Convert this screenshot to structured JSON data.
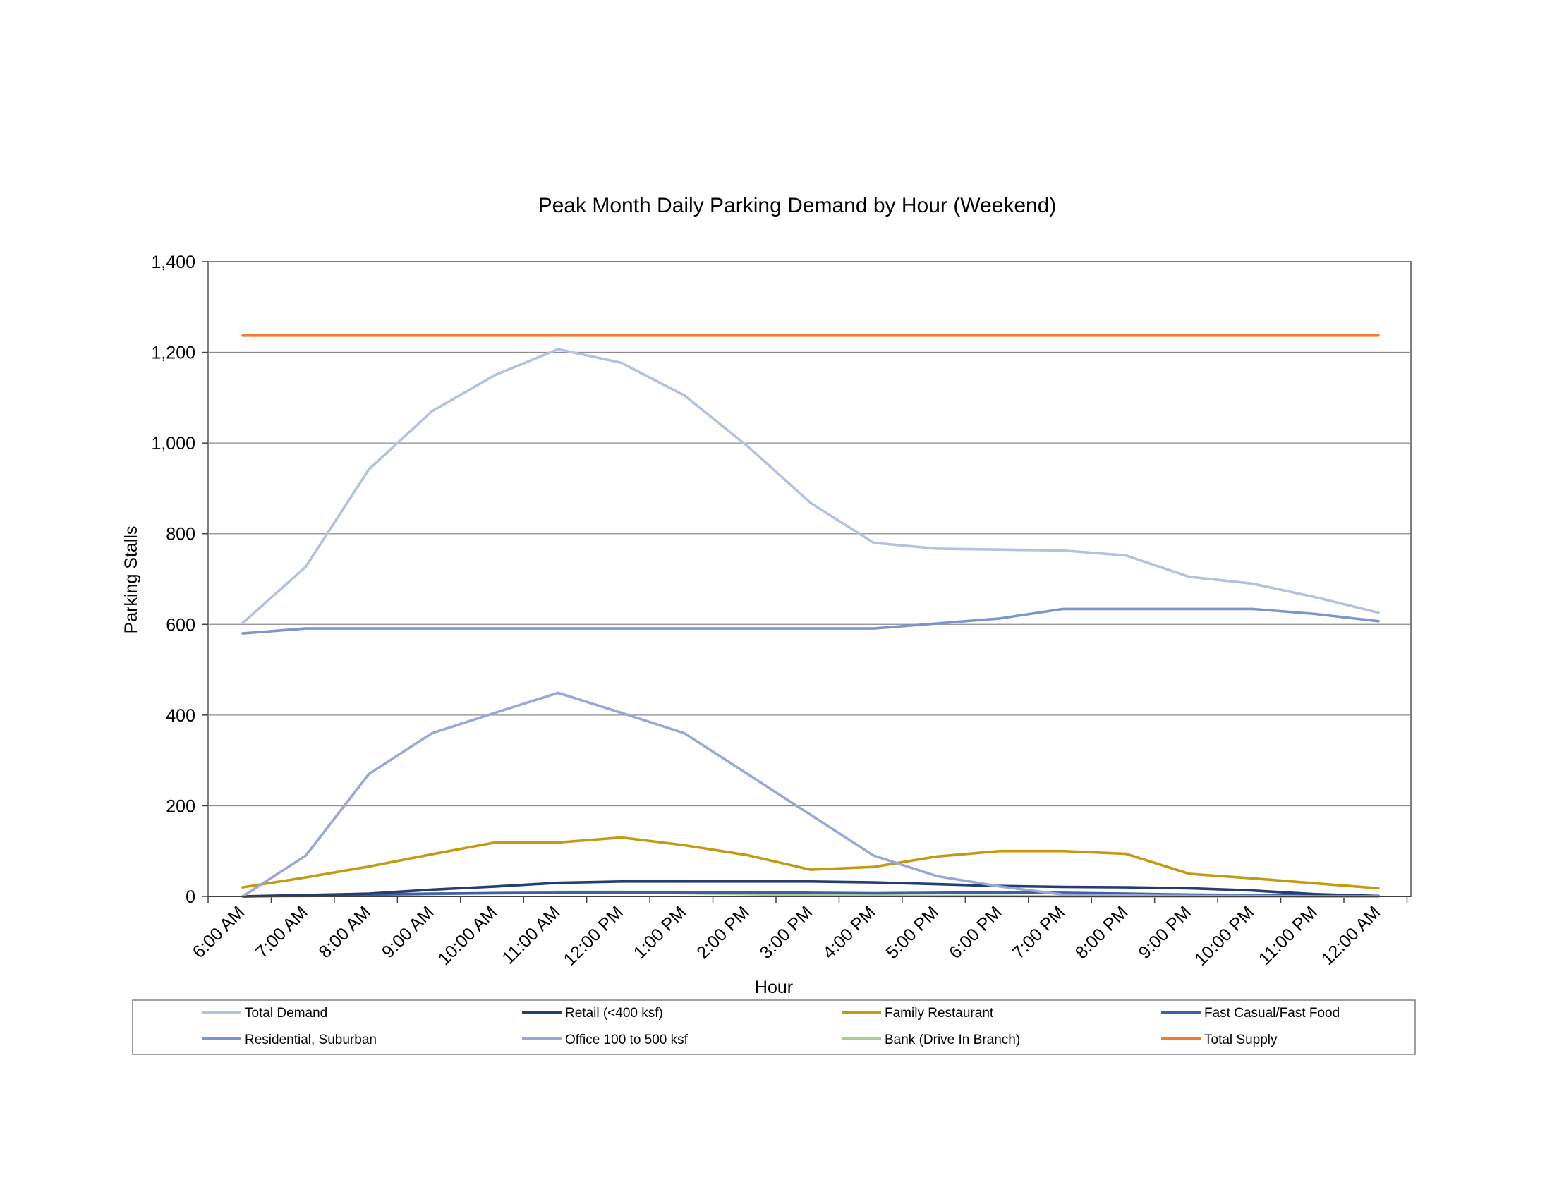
{
  "chart_data": {
    "type": "line",
    "title": "Peak Month Daily Parking Demand by Hour (Weekend)",
    "xlabel": "Hour",
    "ylabel": "Parking Stalls",
    "ylim": [
      0,
      1400
    ],
    "yticks": [
      0,
      200,
      400,
      600,
      800,
      1000,
      1200,
      1400
    ],
    "ytick_labels": [
      "0",
      "200",
      "400",
      "600",
      "800",
      "1,000",
      "1,200",
      "1,400"
    ],
    "grid": true,
    "legend_position": "bottom",
    "categories": [
      "6:00 AM",
      "7:00 AM",
      "8:00 AM",
      "9:00 AM",
      "10:00 AM",
      "11:00 AM",
      "12:00 PM",
      "1:00 PM",
      "2:00 PM",
      "3:00 PM",
      "4:00 PM",
      "5:00 PM",
      "6:00 PM",
      "7:00 PM",
      "8:00 PM",
      "9:00 PM",
      "10:00 PM",
      "11:00 PM",
      "12:00 AM"
    ],
    "series": [
      {
        "name": "Total Demand",
        "color": "#b4c2dd",
        "values": [
          603,
          727,
          942,
          1070,
          1150,
          1207,
          1177,
          1105,
          993,
          868,
          780,
          767,
          765,
          763,
          752,
          705,
          690,
          660,
          626
        ]
      },
      {
        "name": "Retail (<400 ksf)",
        "color": "#243e72",
        "values": [
          0,
          3,
          6,
          15,
          22,
          30,
          33,
          33,
          33,
          33,
          31,
          27,
          23,
          21,
          20,
          18,
          13,
          5,
          1
        ]
      },
      {
        "name": "Family Restaurant",
        "color": "#c49a13",
        "values": [
          20,
          42,
          66,
          93,
          119,
          119,
          130,
          113,
          91,
          59,
          65,
          88,
          100,
          100,
          94,
          50,
          40,
          29,
          18
        ]
      },
      {
        "name": "Fast Casual/Fast Food",
        "color": "#3e5fa5",
        "values": [
          0,
          2,
          4,
          6,
          7,
          8,
          9,
          9,
          9,
          8,
          7,
          8,
          9,
          8,
          6,
          4,
          3,
          2,
          1
        ]
      },
      {
        "name": "Residential, Suburban",
        "color": "#7d95cf",
        "values": [
          580,
          591,
          591,
          591,
          591,
          591,
          591,
          591,
          591,
          591,
          591,
          602,
          613,
          634,
          634,
          634,
          634,
          623,
          607
        ]
      },
      {
        "name": "Office 100 to 500 ksf",
        "color": "#98a9d8",
        "values": [
          0,
          90,
          270,
          360,
          405,
          449,
          405,
          360,
          270,
          180,
          90,
          45,
          22,
          4,
          2,
          1,
          1,
          0,
          0
        ]
      },
      {
        "name": "Bank (Drive In Branch)",
        "color": "#a6cf96",
        "values": [
          0,
          1,
          3,
          5,
          8,
          10,
          10,
          7,
          5,
          3,
          2,
          1,
          1,
          0,
          0,
          0,
          0,
          0,
          0
        ]
      },
      {
        "name": "Total Supply",
        "color": "#ed7d31",
        "values": [
          1237,
          1237,
          1237,
          1237,
          1237,
          1237,
          1237,
          1237,
          1237,
          1237,
          1237,
          1237,
          1237,
          1237,
          1237,
          1237,
          1237,
          1237,
          1237
        ]
      }
    ]
  }
}
